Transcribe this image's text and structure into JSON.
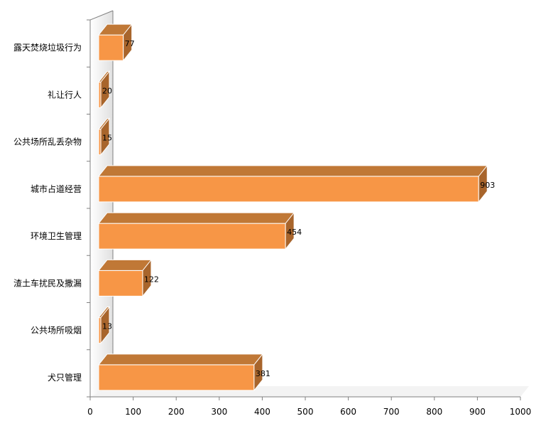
{
  "chart_data": {
    "type": "bar",
    "orientation": "horizontal",
    "style": "3d",
    "title": "",
    "xlabel": "",
    "ylabel": "",
    "categories": [
      "露天焚烧垃圾行为",
      "礼让行人",
      "公共场所乱丢杂物",
      "城市占道经营",
      "环境卫生管理",
      "渣土车扰民及撒漏",
      "公共场所吸烟",
      "犬只管理"
    ],
    "values": [
      77,
      20,
      15,
      903,
      454,
      122,
      13,
      381
    ],
    "xlim": [
      0,
      1000
    ],
    "xticks": [
      0,
      100,
      200,
      300,
      400,
      500,
      600,
      700,
      800,
      900,
      1000
    ],
    "xtick_labels": [
      "0",
      "100",
      "200",
      "300",
      "400",
      "500",
      "600",
      "700",
      "800",
      "900",
      "1000"
    ],
    "data_labels": [
      "77",
      "20",
      "15",
      "903",
      "454",
      "122",
      "13",
      "381"
    ],
    "grid": false,
    "legend": "none",
    "colors": {
      "bar_front": "#F79646",
      "bar_top": "#C07836",
      "bar_side": "#A8652C",
      "wall": "#E0E0E0",
      "axis": "#808080"
    }
  }
}
